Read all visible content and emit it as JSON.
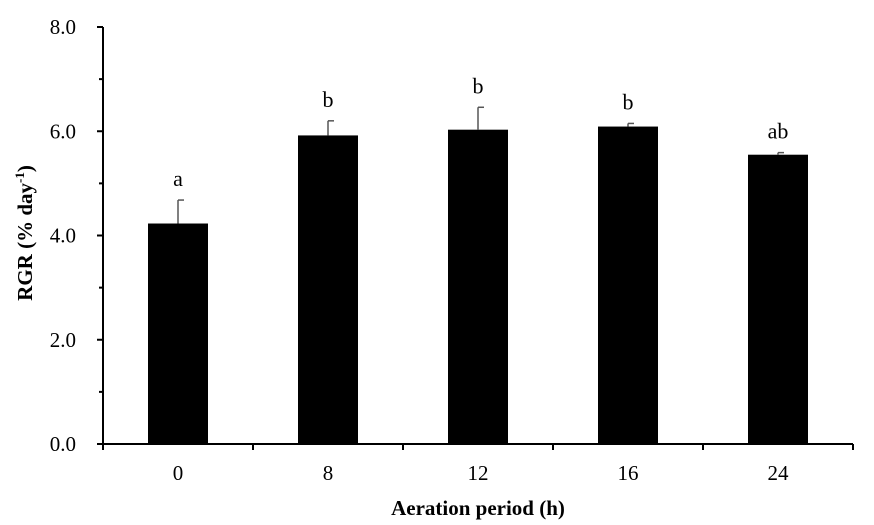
{
  "chart_data": {
    "type": "bar",
    "categories": [
      "0",
      "8",
      "12",
      "16",
      "24"
    ],
    "values": [
      4.23,
      5.92,
      6.03,
      6.09,
      5.55
    ],
    "errors": [
      0.45,
      0.28,
      0.43,
      0.06,
      0.04
    ],
    "significance_letters": [
      "a",
      "b",
      "b",
      "b",
      "ab"
    ],
    "xlabel": "Aeration period (h)",
    "ylabel": "RGR (% day",
    "ylabel_superscript": "-1",
    "ylabel_close": ")",
    "ylim": [
      0,
      8
    ],
    "yticks": [
      "0.0",
      "2.0",
      "4.0",
      "6.0",
      "8.0"
    ],
    "bar_color": "#000000",
    "grid": false
  }
}
